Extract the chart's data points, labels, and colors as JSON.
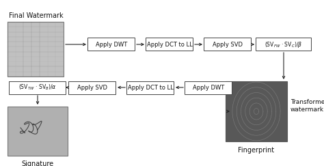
{
  "bg_color": "#ffffff",
  "top_row_label": "Final Watermark",
  "bottom_left_label": "Signature",
  "bottom_right_label": "Fingerprint",
  "right_label": "Transformed\nwatermark",
  "top_boxes": [
    "Apply DWT",
    "Apply DCT to LL",
    "Apply SVD"
  ],
  "top_formula": "(SV$_{FW}$ · SV$_{C}$)/$\\beta$",
  "bottom_boxes": [
    "Apply DWT",
    "Apply DCT to LL",
    "Apply SVD"
  ],
  "bottom_formula": "(SV$_{TW}$ · SV$_{B}$)/$\\alpha$",
  "arrow_color": "#222222",
  "box_edge_color": "#444444",
  "box_fill": "#ffffff",
  "text_color": "#111111",
  "font_size": 6.0,
  "label_font_size": 7.0
}
